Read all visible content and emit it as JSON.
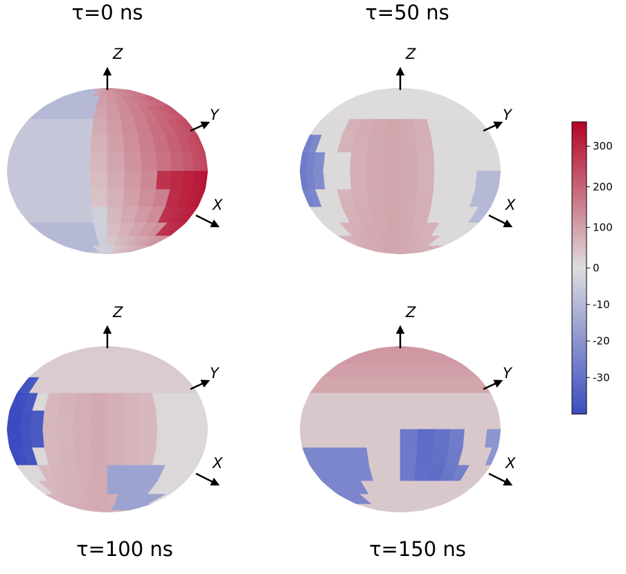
{
  "chart_data": {
    "type": "heatmap",
    "title": "",
    "description_kind": "3D sphere surface color maps",
    "panels": [
      {
        "title": "τ=0 ns",
        "axis_labels": [
          "Z",
          "Y",
          "X"
        ],
        "regions": [
          {
            "band": "lower-right",
            "value": 340
          },
          {
            "band": "right",
            "value": 260
          },
          {
            "band": "center-right",
            "value": 120
          },
          {
            "band": "center",
            "value": 50
          },
          {
            "band": "left",
            "value": -8
          }
        ]
      },
      {
        "title": "τ=50 ns",
        "axis_labels": [
          "Z",
          "Y",
          "X"
        ],
        "regions": [
          {
            "band": "center",
            "value": 80
          },
          {
            "band": "right",
            "value": 20
          },
          {
            "band": "left edge",
            "value": -22
          },
          {
            "band": "right edge",
            "value": -8
          }
        ]
      },
      {
        "title": "τ=100 ns",
        "axis_labels": [
          "Z",
          "Y",
          "X"
        ],
        "regions": [
          {
            "band": "center",
            "value": 70
          },
          {
            "band": "left edge",
            "value": -33
          },
          {
            "band": "lower-right",
            "value": -14
          }
        ]
      },
      {
        "title": "τ=150 ns",
        "axis_labels": [
          "Z",
          "Y",
          "X"
        ],
        "regions": [
          {
            "band": "top cap",
            "value": 120
          },
          {
            "band": "lower-center-right",
            "value": -30
          },
          {
            "band": "lower-left",
            "value": -22
          },
          {
            "band": "middle",
            "value": 40
          }
        ]
      }
    ],
    "colorbar": {
      "colormap": "coolwarm",
      "ticks": [
        "300",
        "200",
        "100",
        "0",
        "-10",
        "-20",
        "-30"
      ],
      "positive_range": [
        0,
        360
      ],
      "negative_range": [
        -40,
        0
      ],
      "min_color": "#3b4cc0",
      "mid_color": "#dddddd",
      "max_color": "#b40426"
    }
  }
}
